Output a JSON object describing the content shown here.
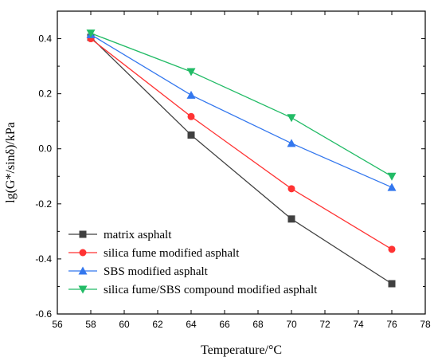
{
  "chart_data": {
    "type": "line",
    "xlabel": "Temperature/°C",
    "ylabel": "lg(G*/sinδ)/kPa",
    "xlim": [
      56,
      78
    ],
    "ylim": [
      -0.6,
      0.5
    ],
    "xticks": [
      56,
      58,
      60,
      62,
      64,
      66,
      68,
      70,
      72,
      74,
      76,
      78
    ],
    "xtick_labels": [
      "56",
      "58",
      "60",
      "62",
      "64",
      "66",
      "68",
      "70",
      "72",
      "74",
      "76",
      "78"
    ],
    "yticks": [
      -0.6,
      -0.4,
      -0.2,
      0.0,
      0.2,
      0.4
    ],
    "ytick_labels": [
      "-0.6",
      "-0.4",
      "-0.2",
      "0.0",
      "0.2",
      "0.4"
    ],
    "grid": false,
    "legend_position": "bottom-left",
    "x": [
      58,
      64,
      70,
      76
    ],
    "series": [
      {
        "name": "matrix asphalt",
        "color": "#404040",
        "marker": "square",
        "values": [
          0.405,
          0.05,
          -0.255,
          -0.49
        ]
      },
      {
        "name": "silica fume modified asphalt",
        "color": "#ff3333",
        "marker": "circle",
        "values": [
          0.4,
          0.117,
          -0.145,
          -0.365
        ]
      },
      {
        "name": "SBS modified asphalt",
        "color": "#3377ee",
        "marker": "triangle-up",
        "values": [
          0.415,
          0.195,
          0.02,
          -0.14
        ]
      },
      {
        "name": "silica fume/SBS compound modified asphalt",
        "color": "#22bb66",
        "marker": "triangle-down",
        "values": [
          0.42,
          0.28,
          0.113,
          -0.1
        ]
      }
    ]
  }
}
